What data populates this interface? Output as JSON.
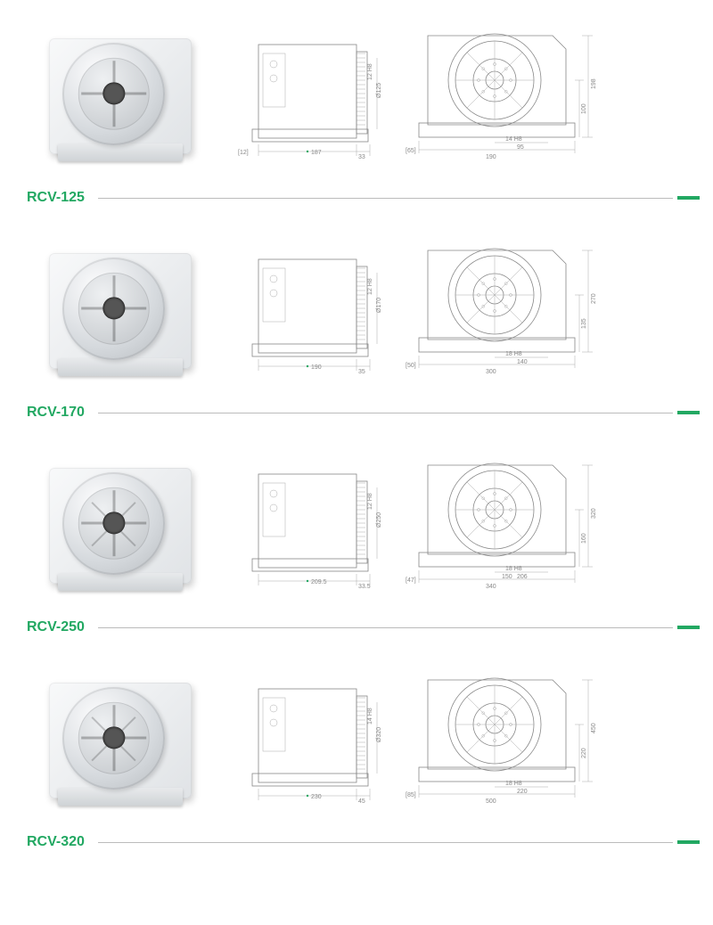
{
  "accent_color": "#22a862",
  "line_color": "#888888",
  "products": [
    {
      "model": "RCV-125",
      "side": {
        "offset_left": "[12]",
        "width": "187",
        "offset_right": "33",
        "bore_tol": "12 H8",
        "dia": "Ø125"
      },
      "front": {
        "offset_left": "[65]",
        "base_width": "190",
        "slot_tol": "14 H8",
        "slot_pos": "95",
        "center_h": "100",
        "total_h": "198"
      }
    },
    {
      "model": "RCV-170",
      "side": {
        "offset_left": "",
        "width": "190",
        "offset_right": "35",
        "bore_tol": "12 H8",
        "dia": "Ø170"
      },
      "front": {
        "offset_left": "[50]",
        "base_width": "300",
        "slot_tol": "18 H8",
        "slot_pos": "140",
        "center_h": "135",
        "total_h": "270"
      }
    },
    {
      "model": "RCV-250",
      "side": {
        "offset_left": "",
        "width": "209.5",
        "offset_right": "33.5",
        "bore_tol": "12 H8",
        "dia": "Ø250"
      },
      "front": {
        "offset_left": "[47]",
        "base_width": "340",
        "slot_tol": "18 H8",
        "slot_pos": "206",
        "center_h": "160",
        "total_h": "320",
        "extra_dim": "150"
      }
    },
    {
      "model": "RCV-320",
      "side": {
        "offset_left": "",
        "width": "230",
        "offset_right": "45",
        "bore_tol": "14 H8",
        "dia": "Ø320"
      },
      "front": {
        "offset_left": "[85]",
        "base_width": "500",
        "slot_tol": "18 H8",
        "slot_pos": "220",
        "center_h": "220",
        "total_h": "450"
      }
    }
  ]
}
